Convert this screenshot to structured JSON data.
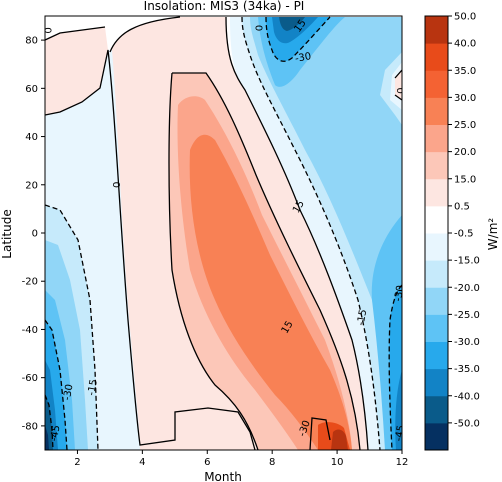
{
  "chart_data": {
    "type": "contour",
    "title": "Insolation: MIS3 (34ka) - PI",
    "xlabel": "Month",
    "ylabel": "Latitude",
    "xlim": [
      1,
      12
    ],
    "ylim": [
      -90,
      90
    ],
    "x_ticks": [
      2,
      4,
      6,
      8,
      10,
      12
    ],
    "y_ticks": [
      80,
      60,
      40,
      20,
      0,
      -20,
      -40,
      -60,
      -80
    ],
    "colorbar": {
      "label": "W/m²",
      "levels": [
        -50.0,
        -40.0,
        -35.0,
        -30.0,
        -25.0,
        -20.0,
        -15.0,
        -0.5,
        0.5,
        15.0,
        20.0,
        25.0,
        30.0,
        35.0,
        40.0,
        50.0
      ],
      "tick_labels": [
        "50.0",
        "40.0",
        "35.0",
        "30.0",
        "25.0",
        "20.0",
        "15.0",
        "0.5",
        "-0.5",
        "-15.0",
        "-20.0",
        "-25.0",
        "-30.0",
        "-35.0",
        "-40.0",
        "-50.0"
      ],
      "band_colors": [
        "#053061",
        "#0a5b8a",
        "#1283c6",
        "#27a9ec",
        "#5ec3f5",
        "#91d6f7",
        "#c6eafb",
        "#e8f6fe",
        "#ffffff",
        "#fde6e1",
        "#fcc7b8",
        "#fba58b",
        "#f88155",
        "#f46233",
        "#e84b1a",
        "#b83410"
      ]
    },
    "contour_labels": [
      {
        "text": "0",
        "x": 1.1,
        "y": 84,
        "rotation": 90
      },
      {
        "text": "0",
        "x": 3.2,
        "y": 20,
        "rotation": 90
      },
      {
        "text": "0",
        "x": 7.6,
        "y": 85,
        "rotation": 90
      },
      {
        "text": "0",
        "x": 11.95,
        "y": 59,
        "rotation": 90
      },
      {
        "text": "15",
        "x": 8.85,
        "y": 86,
        "rotation": -55
      },
      {
        "text": "-30",
        "x": 8.95,
        "y": 73,
        "rotation": -10
      },
      {
        "text": "15",
        "x": 8.8,
        "y": 11,
        "rotation": -60
      },
      {
        "text": "15",
        "x": 8.45,
        "y": -39,
        "rotation": -60
      },
      {
        "text": "-15",
        "x": 10.75,
        "y": -35,
        "rotation": -80
      },
      {
        "text": "-30",
        "x": 11.9,
        "y": -25,
        "rotation": -80
      },
      {
        "text": "-15",
        "x": 2.45,
        "y": -64,
        "rotation": -80
      },
      {
        "text": "-30",
        "x": 1.7,
        "y": -66,
        "rotation": -80
      },
      {
        "text": "-45",
        "x": 1.3,
        "y": -83,
        "rotation": -80
      },
      {
        "text": "-30",
        "x": 8.98,
        "y": -81,
        "rotation": -70
      },
      {
        "text": "-45",
        "x": 11.92,
        "y": -83,
        "rotation": -80
      }
    ]
  }
}
